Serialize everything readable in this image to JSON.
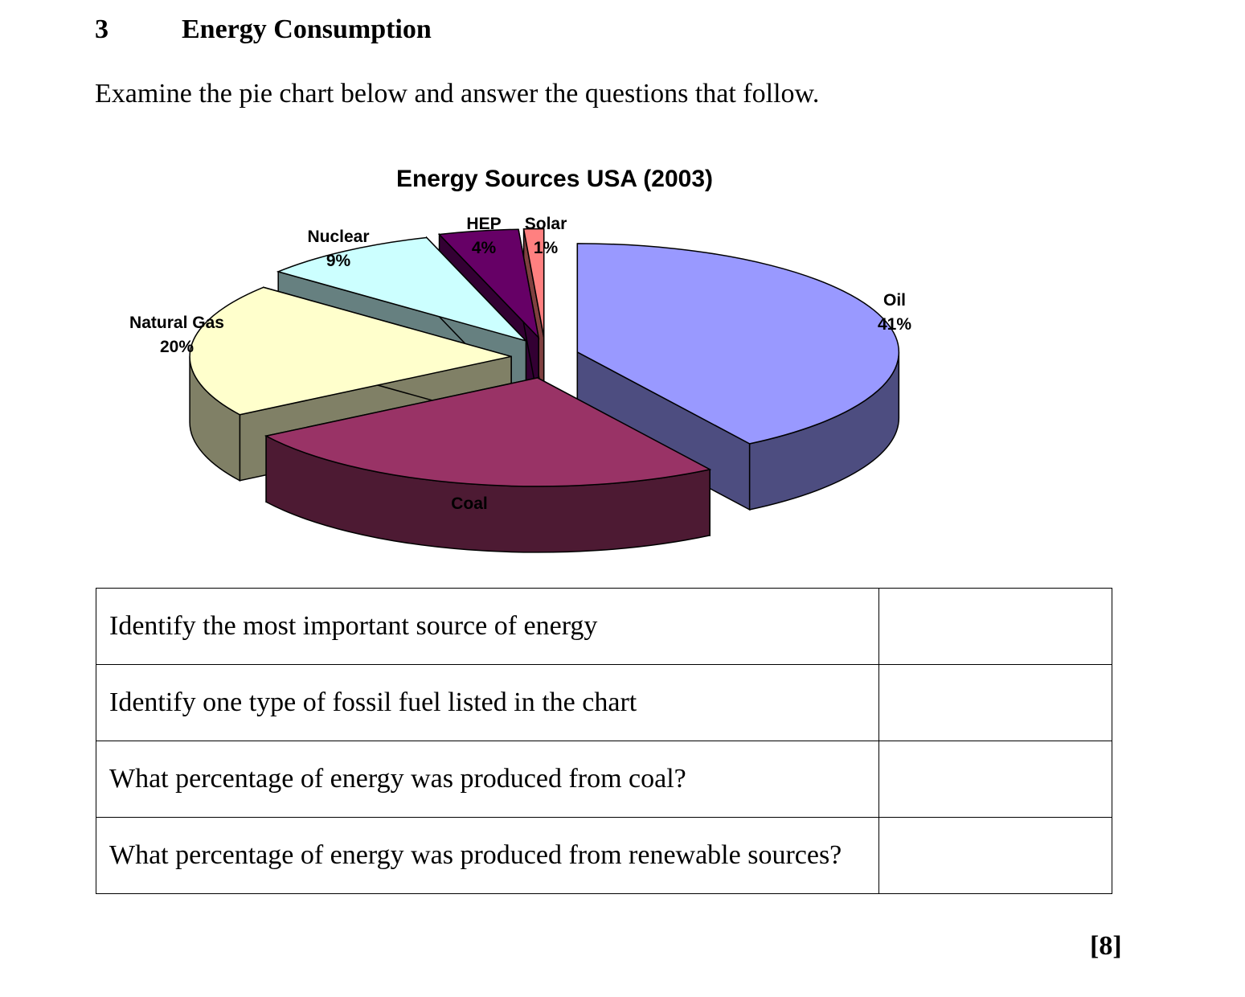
{
  "question": {
    "number": "3",
    "title": "Energy Consumption",
    "instruction": "Examine the pie chart below and answer the questions that follow."
  },
  "chart_data": {
    "type": "pie",
    "style": "3d-exploded",
    "title": "Energy Sources USA (2003)",
    "slices": [
      {
        "label": "Oil",
        "value": 41,
        "value_label": "41%",
        "color": "#9999ff"
      },
      {
        "label": "Coal",
        "value": 25,
        "value_label": "",
        "color": "#993366"
      },
      {
        "label": "Natural Gas",
        "value": 20,
        "value_label": "20%",
        "color": "#ffffcc"
      },
      {
        "label": "Nuclear",
        "value": 9,
        "value_label": "9%",
        "color": "#ccffff"
      },
      {
        "label": "HEP",
        "value": 4,
        "value_label": "4%",
        "color": "#660066"
      },
      {
        "label": "Solar",
        "value": 1,
        "value_label": "1%",
        "color": "#ff8080"
      }
    ]
  },
  "table": {
    "rows": [
      {
        "question": "Identify the most important source of energy",
        "answer": ""
      },
      {
        "question": "Identify one type of fossil fuel listed in the chart",
        "answer": ""
      },
      {
        "question": "What percentage of energy was produced from coal?",
        "answer": ""
      },
      {
        "question": "What percentage of energy was produced from renewable sources?",
        "answer": ""
      }
    ]
  },
  "marks": "[8]"
}
